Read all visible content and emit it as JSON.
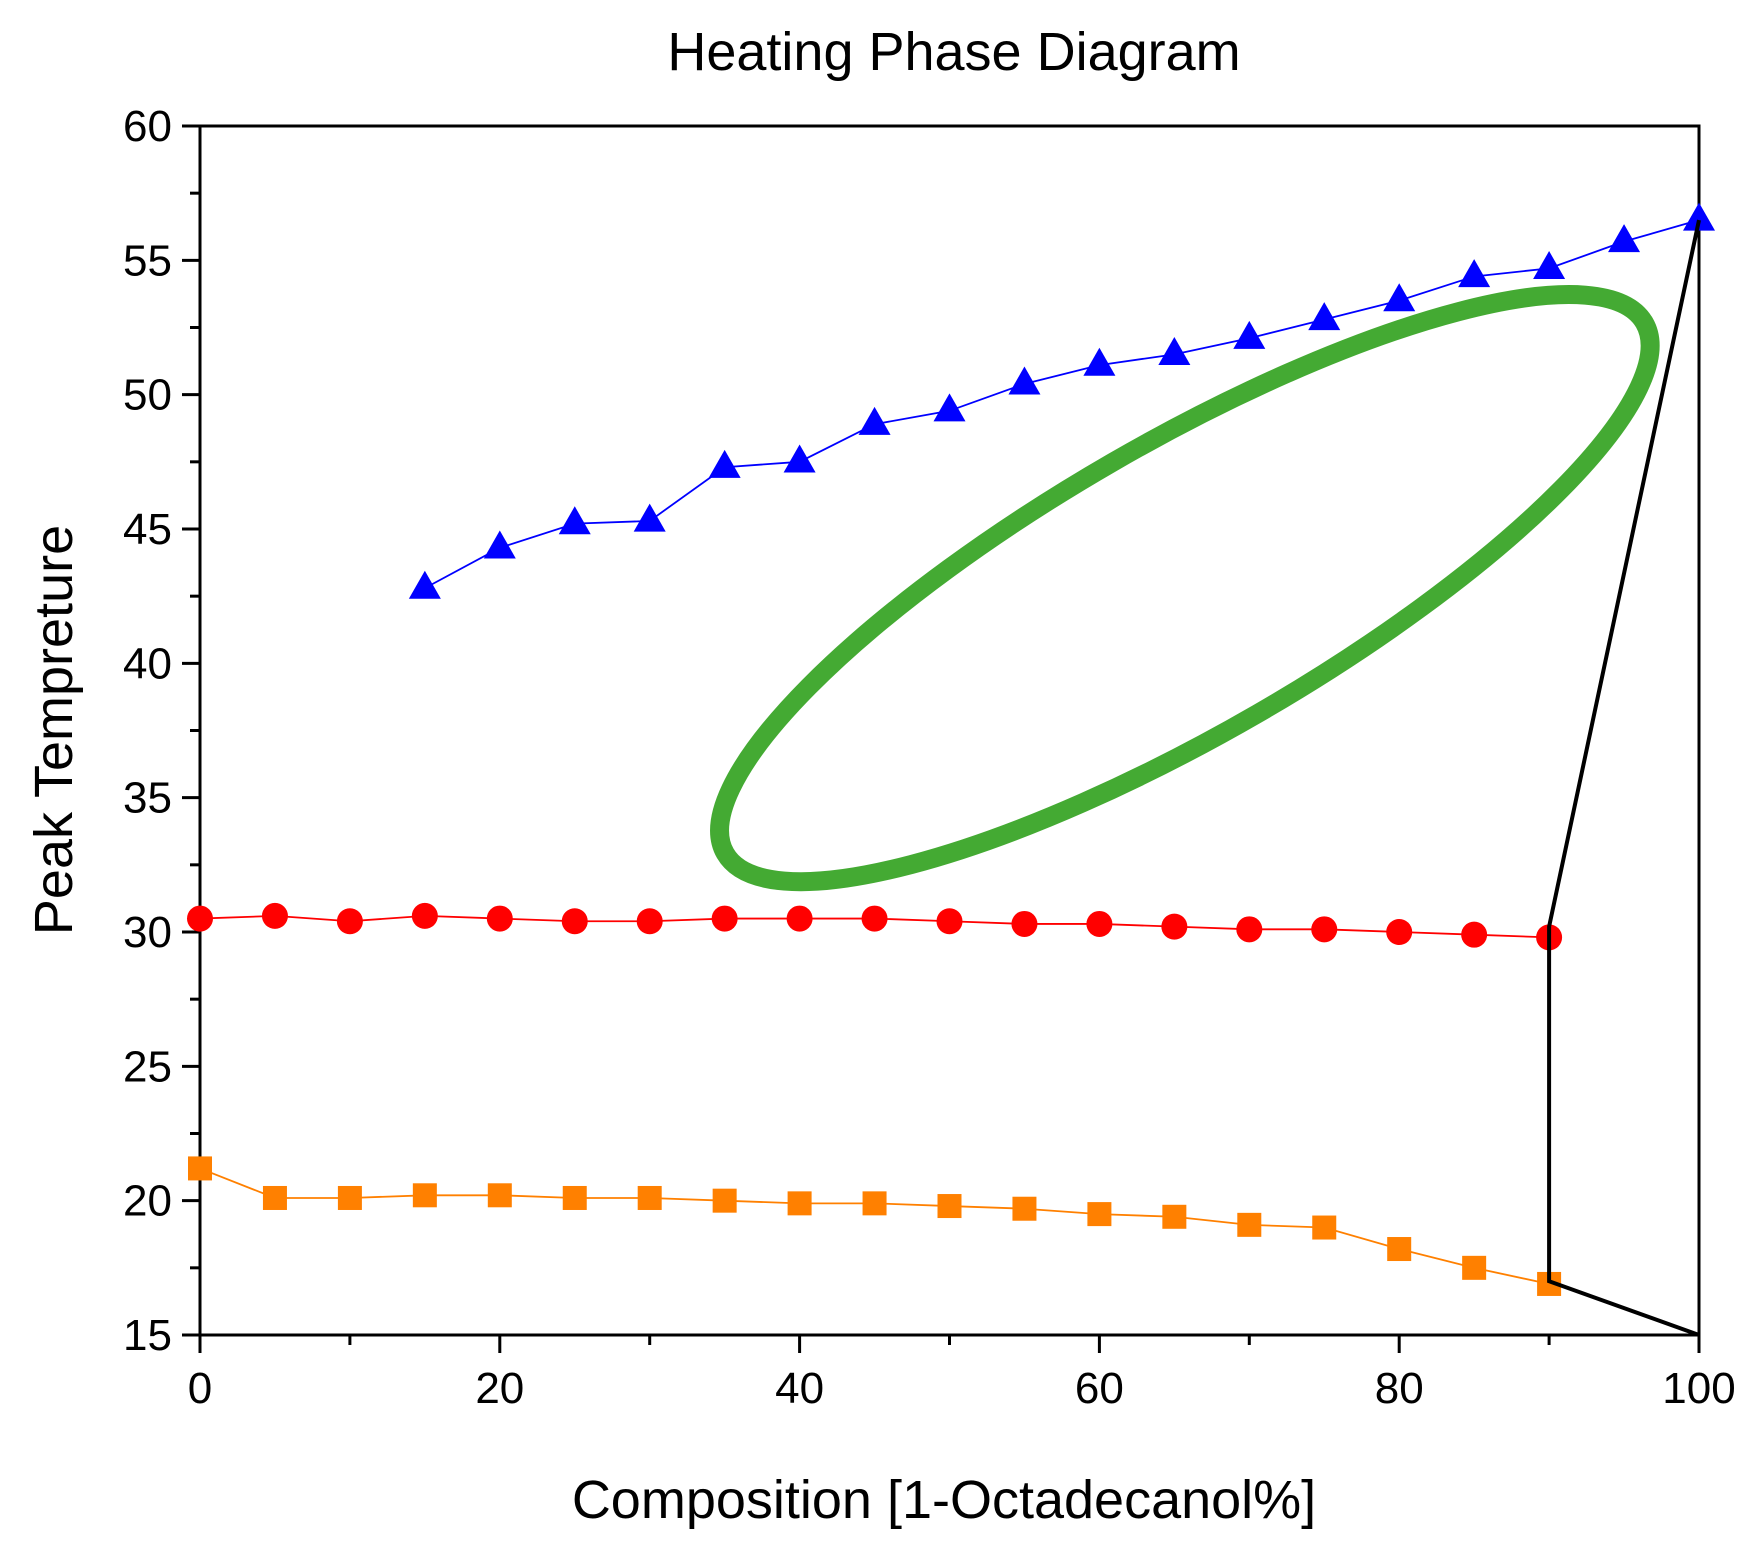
{
  "chart_data": {
    "type": "line",
    "title": "Heating Phase Diagram",
    "xlabel": "Composition [1-Octadecanol%]",
    "ylabel": "Peak Tempreture",
    "xlim": [
      0,
      100
    ],
    "ylim": [
      15,
      60
    ],
    "xticks": [
      "0",
      "20",
      "40",
      "60",
      "80",
      "100"
    ],
    "yticks": [
      "15",
      "20",
      "25",
      "30",
      "35",
      "40",
      "45",
      "50",
      "55",
      "60"
    ],
    "grid": false,
    "legend": "none",
    "series": [
      {
        "marker": "triangle",
        "color": "#0000ff",
        "points": [
          [
            15,
            42.8
          ],
          [
            20,
            44.3
          ],
          [
            25,
            45.2
          ],
          [
            30,
            45.3
          ],
          [
            35,
            47.3
          ],
          [
            40,
            47.5
          ],
          [
            45,
            48.9
          ],
          [
            50,
            49.4
          ],
          [
            55,
            50.4
          ],
          [
            60,
            51.1
          ],
          [
            65,
            51.5
          ],
          [
            70,
            52.1
          ],
          [
            75,
            52.8
          ],
          [
            80,
            53.5
          ],
          [
            85,
            54.4
          ],
          [
            90,
            54.7
          ],
          [
            95,
            55.7
          ],
          [
            100,
            56.5
          ]
        ]
      },
      {
        "marker": "circle",
        "color": "#ff0000",
        "points": [
          [
            0,
            30.5
          ],
          [
            5,
            30.6
          ],
          [
            10,
            30.4
          ],
          [
            15,
            30.6
          ],
          [
            20,
            30.5
          ],
          [
            25,
            30.4
          ],
          [
            30,
            30.4
          ],
          [
            35,
            30.5
          ],
          [
            40,
            30.5
          ],
          [
            45,
            30.5
          ],
          [
            50,
            30.4
          ],
          [
            55,
            30.3
          ],
          [
            60,
            30.3
          ],
          [
            65,
            30.2
          ],
          [
            70,
            30.1
          ],
          [
            75,
            30.1
          ],
          [
            80,
            30.0
          ],
          [
            85,
            29.9
          ],
          [
            90,
            29.8
          ]
        ]
      },
      {
        "marker": "square",
        "color": "#ff8000",
        "points": [
          [
            0,
            21.2
          ],
          [
            5,
            20.1
          ],
          [
            10,
            20.1
          ],
          [
            15,
            20.2
          ],
          [
            20,
            20.2
          ],
          [
            25,
            20.1
          ],
          [
            30,
            20.1
          ],
          [
            35,
            20.0
          ],
          [
            40,
            19.9
          ],
          [
            45,
            19.9
          ],
          [
            50,
            19.8
          ],
          [
            55,
            19.7
          ],
          [
            60,
            19.5
          ],
          [
            65,
            19.4
          ],
          [
            70,
            19.1
          ],
          [
            75,
            19.0
          ],
          [
            80,
            18.2
          ],
          [
            85,
            17.5
          ],
          [
            90,
            16.9
          ]
        ]
      }
    ],
    "annotations": [
      {
        "type": "polyline",
        "color": "#000000",
        "points": [
          [
            100,
            56.5
          ],
          [
            90,
            30.2
          ],
          [
            90,
            22.2
          ],
          [
            90,
            17.0
          ],
          [
            100,
            15.0
          ]
        ]
      },
      {
        "type": "ellipse",
        "color": "#44aa33",
        "center": [
          65.7,
          42.8
        ],
        "rx_data": 35.4,
        "ry_data": 5.4,
        "angle_deg": 30
      }
    ]
  }
}
